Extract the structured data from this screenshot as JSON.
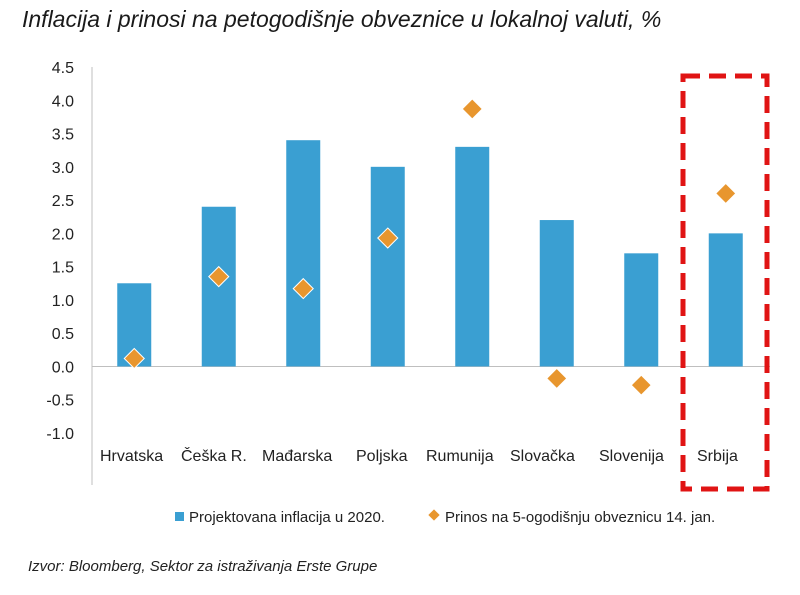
{
  "title": "Inflacija i prinosi na petogodišnje obveznice u lokalnoj valuti, %",
  "source": "Izvor: Bloomberg, Sektor za istraživanja Erste Grupe",
  "colors": {
    "bar": "#3a9fd2",
    "marker": "#e8962e",
    "highlight_box": "#e01414",
    "axis": "#bfbfbf"
  },
  "chart_data": {
    "type": "bar",
    "categories": [
      "Hrvatska",
      "Češka R.",
      "Mađarska",
      "Poljska",
      "Rumunija",
      "Slovačka",
      "Slovenija",
      "Srbija"
    ],
    "series": [
      {
        "name": "Projektovana inflacija u 2020.",
        "type": "bar",
        "values": [
          1.25,
          2.4,
          3.4,
          3.0,
          3.3,
          2.2,
          1.7,
          2.0
        ]
      },
      {
        "name": "Prinos na 5-ogodišnju obveznicu 14. jan.",
        "type": "scatter",
        "marker": "diamond",
        "values": [
          0.12,
          1.35,
          1.17,
          1.93,
          3.87,
          -0.18,
          -0.28,
          2.6
        ]
      }
    ],
    "ylim": [
      -1.0,
      4.5
    ],
    "yticks": [
      "4.5",
      "4.0",
      "3.5",
      "3.0",
      "2.5",
      "2.0",
      "1.5",
      "1.0",
      "0.5",
      "0.0",
      "-0.5",
      "-1.0"
    ],
    "highlighted_category": "Srbija",
    "legend_position": "bottom"
  }
}
